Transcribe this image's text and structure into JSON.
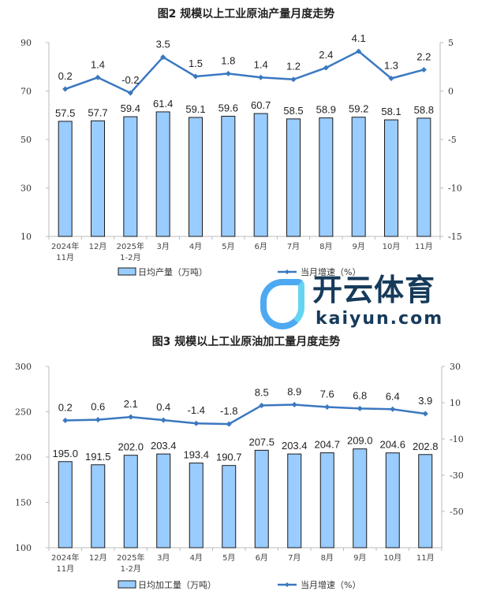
{
  "chart_data": [
    {
      "type": "bar+line",
      "title": "图2  规模以上工业原油产量月度走势",
      "categories": [
        "2024年\n11月",
        "12月",
        "2025年\n1-2月",
        "3月",
        "4月",
        "5月",
        "6月",
        "7月",
        "8月",
        "9月",
        "10月",
        "11月"
      ],
      "series": [
        {
          "name": "日均产量（万吨）",
          "type": "bar",
          "axis": "left",
          "values": [
            57.5,
            57.7,
            59.4,
            61.4,
            59.1,
            59.6,
            60.7,
            58.5,
            58.9,
            59.2,
            58.1,
            58.8
          ]
        },
        {
          "name": "当月增速（%）",
          "type": "line",
          "axis": "right",
          "values": [
            0.2,
            1.4,
            -0.2,
            3.5,
            1.5,
            1.8,
            1.4,
            1.2,
            2.4,
            4.1,
            1.3,
            2.2
          ]
        }
      ],
      "ylim_left": [
        10,
        90
      ],
      "yticks_left": [
        10,
        30,
        50,
        70,
        90
      ],
      "ylim_right": [
        -15,
        5
      ],
      "yticks_right": [
        -15,
        -10,
        -5,
        0,
        5
      ],
      "legend": "bottom",
      "grid": false
    },
    {
      "type": "bar+line",
      "title": "图3  规模以上工业原油加工量月度走势",
      "categories": [
        "2024年\n11月",
        "12月",
        "2025年\n1-2月",
        "3月",
        "4月",
        "5月",
        "6月",
        "7月",
        "8月",
        "9月",
        "10月",
        "11月"
      ],
      "series": [
        {
          "name": "日均加工量（万吨）",
          "type": "bar",
          "axis": "left",
          "values": [
            195.0,
            191.5,
            202.0,
            203.4,
            193.4,
            190.7,
            207.5,
            203.4,
            204.7,
            209.0,
            204.6,
            202.8
          ]
        },
        {
          "name": "当月增速（%）",
          "type": "line",
          "axis": "right",
          "values": [
            0.2,
            0.6,
            2.1,
            0.4,
            -1.4,
            -1.8,
            8.5,
            8.9,
            7.6,
            6.8,
            6.4,
            3.9
          ]
        }
      ],
      "ylim_left": [
        100,
        300
      ],
      "yticks_left": [
        100,
        150,
        200,
        250,
        300
      ],
      "ylim_right": [
        -70,
        30
      ],
      "yticks_right": [
        -50,
        -30,
        -10,
        10,
        30
      ],
      "legend": "bottom",
      "grid": false
    }
  ],
  "colors": {
    "bar": "#99ccff",
    "bar_stroke": "#1a1a1a",
    "line": "#3a78c0"
  },
  "watermark": {
    "brand": "开云体育",
    "url": "kaiyun.com"
  }
}
